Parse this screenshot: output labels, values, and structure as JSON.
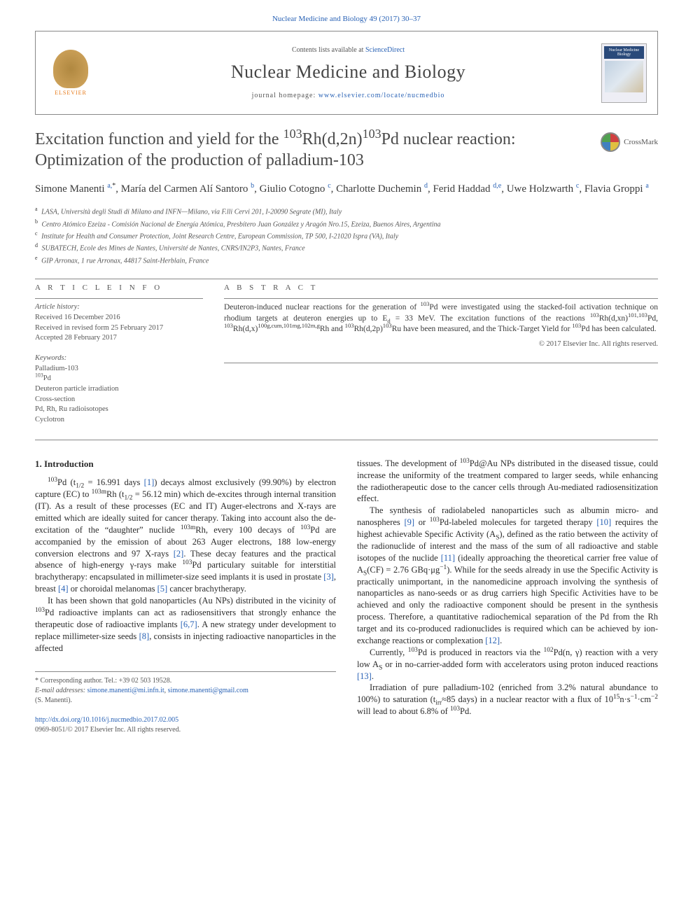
{
  "header": {
    "topLink": "Nuclear Medicine and Biology 49 (2017) 30–37",
    "contentsLine_pre": "Contents lists available at ",
    "contentsLine_link": "ScienceDirect",
    "journalName": "Nuclear Medicine and Biology",
    "homepage_pre": "journal homepage: ",
    "homepage_link": "www.elsevier.com/locate/nucmedbio",
    "publisherName": "ELSEVIER",
    "coverLabel": "Nuclear Medicine Biology"
  },
  "crossmark": "CrossMark",
  "title_html": "Excitation function and yield for the <sup>103</sup>Rh(d,2n)<sup>103</sup>Pd nuclear reaction: Optimization of the production of palladium-103",
  "authors_html": "Simone Manenti <span class='aff-sup'>a,</span><span class='star-sup'>*</span>, María del Carmen Alí Santoro <span class='aff-sup'>b</span>, Giulio Cotogno <span class='aff-sup'>c</span>, Charlotte Duchemin <span class='aff-sup'>d</span>, Ferid Haddad <span class='aff-sup'>d,e</span>, Uwe Holzwarth <span class='aff-sup'>c</span>, Flavia Groppi <span class='aff-sup'>a</span>",
  "affiliations": [
    {
      "label": "a",
      "text": "LASA, Università degli Studi di Milano and INFN—Milano, via F.lli Cervi 201, I-20090 Segrate (MI), Italy"
    },
    {
      "label": "b",
      "text": "Centro Atómico Ezeiza - Comisión Nacional de Energía Atómica, Presbítero Juan González y Aragón Nro.15, Ezeiza, Buenos Aires, Argentina"
    },
    {
      "label": "c",
      "text": "Institute for Health and Consumer Protection, Joint Research Centre, European Commission, TP 500, I-21020 Ispra (VA), Italy"
    },
    {
      "label": "d",
      "text": "SUBATECH, Ecole des Mines de Nantes, Université de Nantes, CNRS/IN2P3, Nantes, France"
    },
    {
      "label": "e",
      "text": "GIP Arronax, 1 rue Arronax, 44817 Saint-Herblain, France"
    }
  ],
  "articleInfo": {
    "head": "A R T I C L E   I N F O",
    "historyLabel": "Article history:",
    "history": [
      "Received 16 December 2016",
      "Received in revised form 25 February 2017",
      "Accepted 28 February 2017"
    ],
    "keywordsLabel": "Keywords:",
    "keywords_html": "Palladium-103<br><sup>103</sup>Pd<br>Deuteron particle irradiation<br>Cross-section<br>Pd, Rh, Ru radioisotopes<br>Cyclotron"
  },
  "abstract": {
    "head": "A B S T R A C T",
    "text_html": "Deuteron-induced nuclear reactions for the generation of <sup>103</sup>Pd were investigated using the stacked-foil activation technique on rhodium targets at deuteron energies up to E<sub>d</sub> = 33 MeV. The excitation functions of the reactions <sup>103</sup>Rh(d,xn)<sup>101,103</sup>Pd, <sup>103</sup>Rh(d,x)<sup>100g,cum,101mg,102m,g</sup>Rh and <sup>103</sup>Rh(d,2p)<sup>103</sup>Ru have been measured, and the Thick-Target Yield for <sup>103</sup>Pd has been calculated.",
    "copyright": "© 2017 Elsevier Inc. All rights reserved."
  },
  "body": {
    "heading1": "1. Introduction",
    "p1_html": "<sup>103</sup>Pd (t<sub>1/2</sub> = 16.991 days <span class='ref-link'>[1]</span>) decays almost exclusively (99.90%) by electron capture (EC) to <sup>103m</sup>Rh (t<sub>1/2</sub> = 56.12 min) which de-excites through internal transition (IT). As a result of these processes (EC and IT) Auger-electrons and X-rays are emitted which are ideally suited for cancer therapy. Taking into account also the de-excitation of the “daughter” nuclide <sup>103m</sup>Rh, every 100 decays of <sup>103</sup>Pd are accompanied by the emission of about 263 Auger electrons, 188 low-energy conversion electrons and 97 X-rays <span class='ref-link'>[2]</span>. These decay features and the practical absence of high-energy γ-rays make <sup>103</sup>Pd particulary suitable for interstitial brachytherapy: encapsulated in millimeter-size seed implants it is used in prostate <span class='ref-link'>[3]</span>, breast <span class='ref-link'>[4]</span> or choroidal melanomas <span class='ref-link'>[5]</span> cancer brachytherapy.",
    "p2_html": "It has been shown that gold nanoparticles (Au NPs) distributed in the vicinity of <sup>103</sup>Pd radioactive implants can act as radiosensitivers that strongly enhance the therapeutic dose of radioactive implants <span class='ref-link'>[6,7]</span>. A new strategy under development to replace millimeter-size seeds <span class='ref-link'>[8]</span>, consists in injecting radioactive nanoparticles in the affected",
    "p3_html": "tissues. The development of <sup>103</sup>Pd@Au NPs distributed in the diseased tissue, could increase the uniformity of the treatment compared to larger seeds, while enhancing the radiotherapeutic dose to the cancer cells through Au-mediated radiosensitization effect.",
    "p4_html": "The synthesis of radiolabeled nanoparticles such as albumin micro- and nanospheres <span class='ref-link'>[9]</span> or <sup>103</sup>Pd-labeled molecules for targeted therapy <span class='ref-link'>[10]</span> requires the highest achievable Specific Activity (A<sub>S</sub>), defined as the ratio between the activity of the radionuclide of interest and the mass of the sum of all radioactive and stable isotopes of the nuclide <span class='ref-link'>[11]</span> (ideally approaching the theoretical carrier free value of A<sub>S</sub>(CF) = 2.76 GBq·μg<sup>−1</sup>). While for the seeds already in use the Specific Activity is practically unimportant, in the nanomedicine approach involving the synthesis of nanoparticles as nano-seeds or as drug carriers high Specific Activities have to be achieved and only the radioactive component should be present in the synthesis process. Therefore, a quantitative radiochemical separation of the Pd from the Rh target and its co-produced radionuclides is required which can be achieved by ion-exchange reactions or complexation <span class='ref-link'>[12]</span>.",
    "p5_html": "Currently, <sup>103</sup>Pd is produced in reactors via the <sup>102</sup>Pd(n, γ) reaction with a very low A<sub>S</sub> or in no-carrier-added form with accelerators using proton induced reactions <span class='ref-link'>[13]</span>.",
    "p6_html": "Irradiation of pure palladium-102 (enriched from 3.2% natural abundance to 100%) to saturation (t<sub>irr</sub>≈85 days) in a nuclear reactor with a flux of 10<sup>15</sup>n·s<sup>−1</sup>·cm<sup>−2</sup> will lead to about 6.8% of <sup>103</sup>Pd."
  },
  "footer": {
    "corr_html": "* Corresponding author. Tel.: +39 02 503 19528.",
    "email_label": "E-mail addresses:",
    "email1": "simone.manenti@mi.infn.it",
    "email2": "simone.manenti@gmail.com",
    "email_name": "(S. Manenti).",
    "doi": "http://dx.doi.org/10.1016/j.nucmedbio.2017.02.005",
    "issn": "0969-8051/© 2017 Elsevier Inc. All rights reserved."
  },
  "colors": {
    "link": "#2962b5",
    "text": "#2a2a2a",
    "muted": "#555555",
    "rule": "#888888",
    "orange": "#e67817"
  }
}
